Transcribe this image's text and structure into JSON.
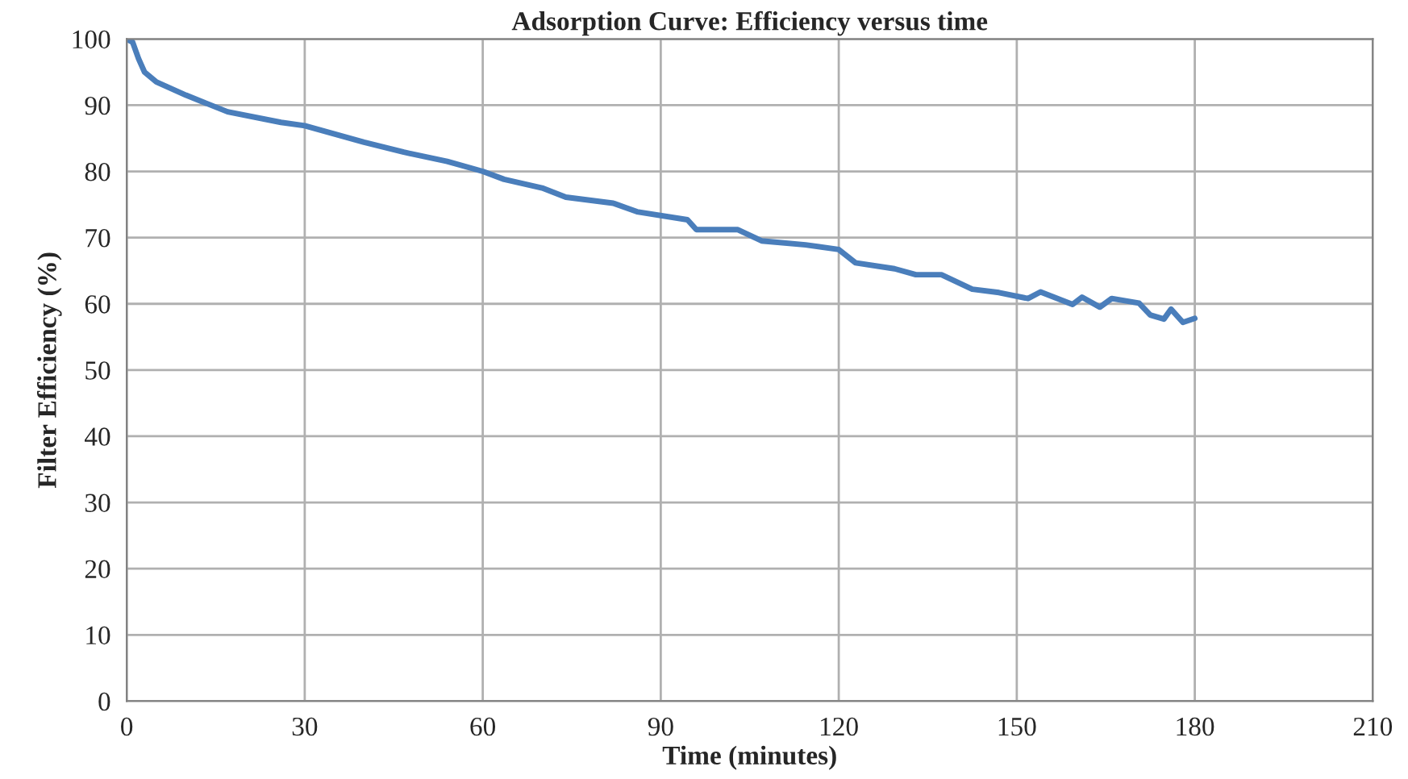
{
  "chart_data": {
    "type": "line",
    "title": "Adsorption Curve: Efficiency versus time",
    "xlabel": "Time (minutes)",
    "ylabel": "Filter Efficiency (%)",
    "series": [
      {
        "color": "#4a7ebb",
        "x": [
          0,
          1,
          2,
          3,
          5,
          10,
          17,
          26,
          30,
          40,
          46.7,
          54,
          60,
          63.6,
          70,
          74,
          82,
          86,
          94.5,
          96,
          103,
          107,
          114.4,
          120,
          122.8,
          129.4,
          133,
          137.3,
          142.5,
          147,
          151.9,
          154,
          159.4,
          161,
          164,
          166,
          170.6,
          172.5,
          174.8,
          176,
          178,
          180
        ],
        "values": [
          100,
          99.5,
          97,
          95,
          93.5,
          91.5,
          89,
          87.4,
          86.9,
          84.4,
          82.9,
          81.5,
          80,
          78.8,
          77.5,
          76.1,
          75.2,
          73.9,
          72.7,
          71.2,
          71.2,
          69.5,
          68.9,
          68.2,
          66.2,
          65.3,
          64.4,
          64.4,
          62.2,
          61.7,
          60.8,
          61.8,
          59.9,
          61,
          59.5,
          60.8,
          60.1,
          58.3,
          57.7,
          59.2,
          57.2,
          57.8
        ]
      }
    ],
    "xlim": [
      0,
      210
    ],
    "xticks": [
      0,
      30,
      60,
      90,
      120,
      150,
      180,
      210
    ],
    "ylim": [
      0,
      100
    ],
    "yticks": [
      0,
      10,
      20,
      30,
      40,
      50,
      60,
      70,
      80,
      90,
      100
    ],
    "grid": true,
    "legend": false,
    "marker": "none",
    "line_style": "solid"
  }
}
